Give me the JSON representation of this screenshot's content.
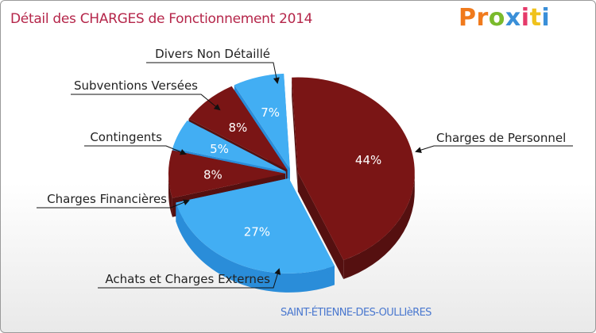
{
  "title": "Détail des CHARGES de Fonctionnement 2014",
  "logo_text": "Proxiti",
  "location": "SAINT-ÉTIENNE-DES-OULLIèRES",
  "colors": {
    "title": "#b5264a",
    "blue_top": "#42aef3",
    "blue_side": "#2a8dd9",
    "red_top": "#7a1515",
    "red_side": "#551010",
    "logo": [
      "#f07a1c",
      "#f07a1c",
      "#7aba2c",
      "#3a8fd8",
      "#e53a6a",
      "#f0c21c",
      "#3a8fd8"
    ]
  },
  "chart_data": {
    "type": "pie",
    "title": "Détail des CHARGES de Fonctionnement 2014",
    "slices": [
      {
        "label": "Charges de Personnel",
        "value": 44,
        "value_label": "44%",
        "color": "red"
      },
      {
        "label": "Achats et Charges Externes",
        "value": 27,
        "value_label": "27%",
        "color": "blue"
      },
      {
        "label": "Charges Financières",
        "value": 8,
        "value_label": "8%",
        "color": "red"
      },
      {
        "label": "Contingents",
        "value": 5,
        "value_label": "5%",
        "color": "blue"
      },
      {
        "label": "Subventions Versées",
        "value": 8,
        "value_label": "8%",
        "color": "red"
      },
      {
        "label": "Divers Non Détaillé",
        "value": 7,
        "value_label": "7%",
        "color": "blue"
      }
    ],
    "legend": "none"
  }
}
